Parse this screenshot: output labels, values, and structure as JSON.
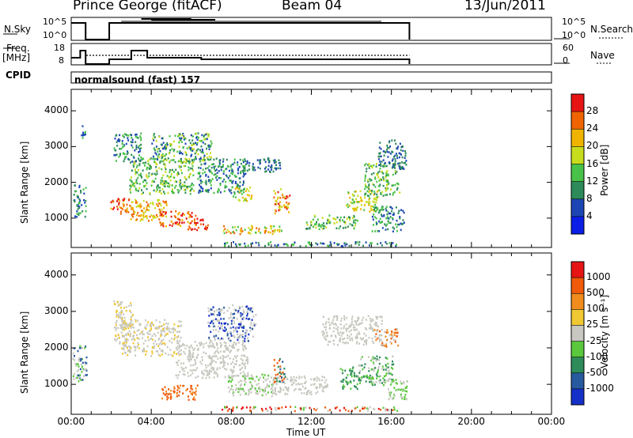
{
  "header": {
    "station": "Prince George (fitACF)",
    "beam": "Beam 04",
    "date": "13/Jun/2011"
  },
  "strip_labels": {
    "nsky": "N.Sky",
    "nsky_ticks": [
      "10^5",
      "10^0"
    ],
    "nsearch": "N.Search",
    "nsearch_ticks": [
      "10^5",
      "10^0"
    ],
    "freq": "Freq.",
    "freq_unit": "[MHz]",
    "freq_ticks": [
      "18",
      "8"
    ],
    "nave": "Nave",
    "nave_ticks": [
      "60",
      "0"
    ],
    "cpid": "CPID",
    "cpid_value": "normalsound (fast) 157"
  },
  "chart_data": [
    {
      "type": "heatmap",
      "name": "power-panel",
      "ylabel": "Slant Range [km]",
      "yticks": [
        "1000",
        "2000",
        "3000",
        "4000"
      ],
      "ylim": [
        180,
        4600
      ],
      "colorbar_label": "Power [dB]",
      "colorbar_ticks": [
        "4",
        "8",
        "12",
        "16",
        "20",
        "24",
        "28"
      ],
      "colors": [
        "#0a1ee6",
        "#1c46b4",
        "#2d8a5a",
        "#48c248",
        "#c8dc1e",
        "#f0b400",
        "#f06400",
        "#e61414"
      ]
    },
    {
      "type": "heatmap",
      "name": "velocity-panel",
      "ylabel": "Slant Range [km]",
      "yticks": [
        "1000",
        "2000",
        "3000",
        "4000"
      ],
      "ylim": [
        180,
        4600
      ],
      "colorbar_label": "Velocity [m s⁻¹]",
      "colorbar_ticks": [
        "1000",
        "500",
        "100",
        "25",
        "-25",
        "-100",
        "-500",
        "-1000"
      ],
      "colors": [
        "#1430c8",
        "#285aa0",
        "#2d8c5a",
        "#5ac83c",
        "#c8c8c0",
        "#f0c832",
        "#f08c1e",
        "#f05a0a",
        "#e61414"
      ]
    }
  ],
  "xaxis": {
    "label": "Time UT",
    "ticks": [
      "00:00",
      "04:00",
      "08:00",
      "12:00",
      "16:00",
      "20:00",
      "00:00"
    ]
  }
}
